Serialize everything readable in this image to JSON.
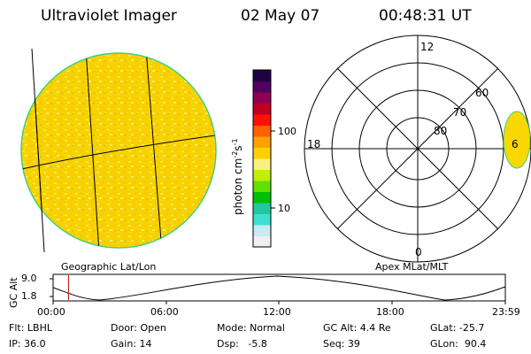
{
  "header": {
    "title": "Ultraviolet Imager",
    "date": "02 May 07",
    "time": "00:48:31 UT"
  },
  "image_panel": {
    "caption": "Geographic Lat/Lon"
  },
  "colorbar": {
    "unit_text": "photon cm",
    "unit_exp1": "-2",
    "unit_s": "s",
    "unit_exp2": "-1",
    "ticks": [
      "100",
      "10"
    ],
    "colors": [
      "#f0f0f0",
      "#c8eaf2",
      "#40e0d0",
      "#20c8a0",
      "#00c000",
      "#60e000",
      "#c0f000",
      "#f8f080",
      "#ffd000",
      "#ffa000",
      "#ff6000",
      "#ff1000",
      "#c00020",
      "#900050",
      "#500060",
      "#200040"
    ]
  },
  "polar_panel": {
    "caption": "Apex MLat/MLT",
    "mlt_labels": {
      "top": "12",
      "left": "18",
      "bottom": "0",
      "right": "6"
    },
    "lat_labels": [
      "60",
      "70",
      "80"
    ]
  },
  "timeline": {
    "ylabel": "GC Alt",
    "yticks": [
      "9.0",
      "1.8"
    ],
    "xticks": [
      "00:00",
      "06:00",
      "12:00",
      "18:00",
      "23:59"
    ],
    "current_fraction": 0.034
  },
  "info": {
    "row1": {
      "filter": "Flt: LBHL",
      "door": "Door: Open",
      "mode": "Mode: Normal",
      "gc_alt": "GC Alt: 4.4 Re",
      "glat": "GLat: -25.7"
    },
    "row2": {
      "ip": "IP: 36.0",
      "gain": "Gain: 14",
      "dsp": "Dsp:   -5.8",
      "seq": "Seq: 39",
      "glon": "GLon:  90.4"
    }
  },
  "colors": {
    "image_fill": "#f8d800",
    "image_edge": "#40d080",
    "timeline_marker": "#c00000"
  }
}
